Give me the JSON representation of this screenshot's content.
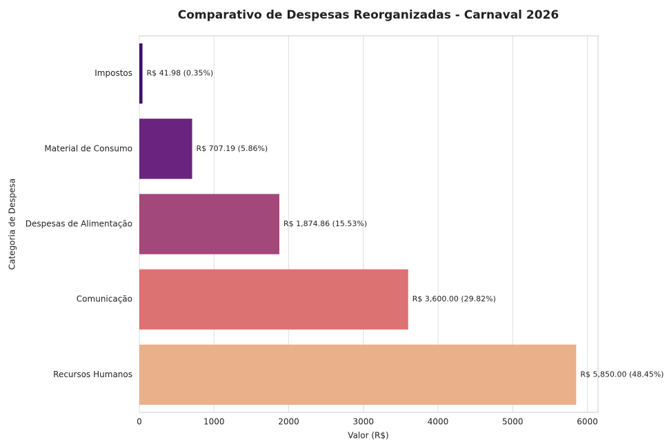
{
  "chart_data": {
    "type": "barh",
    "title": "Comparativo de Despesas Reorganizadas - Carnaval 2026",
    "xlabel": "Valor (R$)",
    "ylabel": "Categoria de Despesa",
    "categories": [
      "Impostos",
      "Material de Consumo",
      "Despesas de Alimentação",
      "Comunicação",
      "Recursos Humanos"
    ],
    "values": [
      41.98,
      707.19,
      1874.86,
      3600.0,
      5850.0
    ],
    "value_labels": [
      "R$ 41.98 (0.35%)",
      "R$ 707.19 (5.86%)",
      "R$ 1,874.86 (15.53%)",
      "R$ 3,600.00 (29.82%)",
      "R$ 5,850.00 (48.45%)"
    ],
    "colors": [
      "#3b0f70",
      "#6b2380",
      "#a3487a",
      "#dc7272",
      "#e9b089"
    ],
    "xlim": [
      0,
      6142.5
    ],
    "xticks": [
      0,
      1000,
      2000,
      3000,
      4000,
      5000,
      6000
    ],
    "grid": true
  }
}
